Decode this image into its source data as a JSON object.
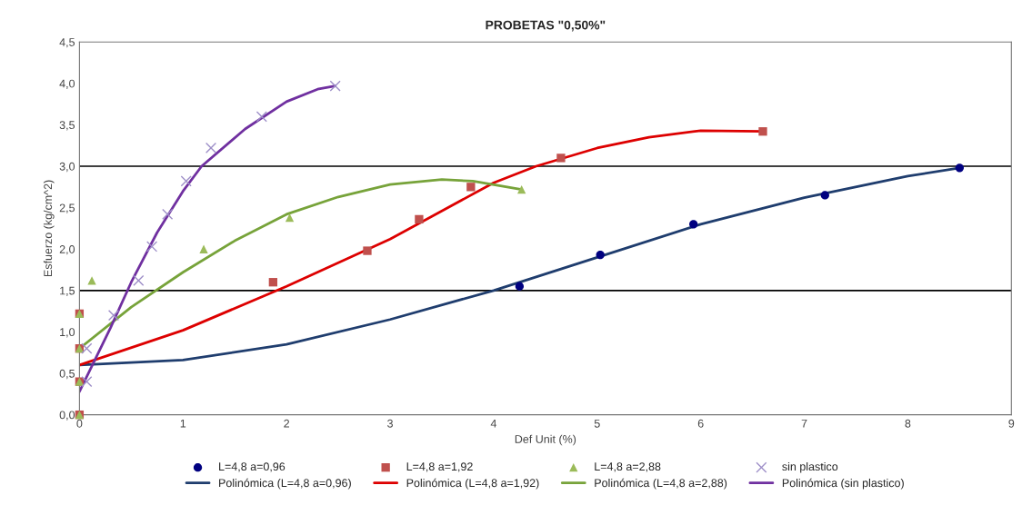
{
  "chart_data": {
    "type": "scatter",
    "title": "PROBETAS \"0,50%\"",
    "xlabel": "Def Unit (%)",
    "ylabel": "Esfuerzo (kg/cm^2)",
    "xlim": [
      0,
      9
    ],
    "xticks": [
      0,
      1,
      2,
      3,
      4,
      5,
      6,
      7,
      8,
      9
    ],
    "ylim": [
      0,
      4.5
    ],
    "yticks": [
      {
        "value": 0,
        "label": "0,0"
      },
      {
        "value": 0.5,
        "label": "0,5"
      },
      {
        "value": 1,
        "label": "1,0"
      },
      {
        "value": 1.5,
        "label": "1,5"
      },
      {
        "value": 2,
        "label": "2,0"
      },
      {
        "value": 2.5,
        "label": "2,5"
      },
      {
        "value": 3,
        "label": "3,0"
      },
      {
        "value": 3.5,
        "label": "3,5"
      },
      {
        "value": 4,
        "label": "4,0"
      },
      {
        "value": 4.5,
        "label": "4,5"
      }
    ],
    "grid": false,
    "legend": "bottom",
    "ref_lines": [
      {
        "axis": "y",
        "value": 1.5,
        "color": "#000000"
      },
      {
        "axis": "y",
        "value": 3.0,
        "color": "#000000"
      }
    ],
    "series": [
      {
        "name": "L=4,8 a=0,96",
        "marker": "circle",
        "color": "#000080",
        "x": [
          4.25,
          5.03,
          5.93,
          7.2,
          8.5
        ],
        "values": [
          1.55,
          1.93,
          2.3,
          2.65,
          2.98
        ]
      },
      {
        "name": "L=4,8 a=1,92",
        "marker": "square",
        "color": "#c0504d",
        "x": [
          0,
          0,
          0,
          0,
          1.87,
          2.78,
          3.28,
          3.78,
          4.65,
          6.6
        ],
        "values": [
          0,
          0.4,
          0.8,
          1.22,
          1.6,
          1.98,
          2.36,
          2.75,
          3.1,
          3.42
        ]
      },
      {
        "name": "L=4,8 a=2,88",
        "marker": "triangle",
        "color": "#9bbb59",
        "x": [
          0,
          0,
          0,
          0,
          0.12,
          1.2,
          2.03,
          4.27
        ],
        "values": [
          0,
          0.4,
          0.8,
          1.22,
          1.62,
          2.0,
          2.38,
          2.72
        ]
      },
      {
        "name": "sin plastico",
        "marker": "cross",
        "color": "#9e8fc8",
        "x": [
          0.07,
          0.07,
          0.33,
          0.57,
          0.7,
          0.85,
          1.03,
          1.27,
          1.76,
          2.47
        ],
        "values": [
          0.4,
          0.8,
          1.2,
          1.62,
          2.03,
          2.42,
          2.82,
          3.22,
          3.6,
          3.97
        ]
      },
      {
        "name": "Polinómica (L=4,8 a=0,96)",
        "type": "line",
        "marker": "none",
        "color": "#1f3d6e",
        "x": [
          0,
          1,
          2,
          3,
          4,
          5,
          6,
          7,
          8,
          8.5
        ],
        "values": [
          0.6,
          0.66,
          0.85,
          1.15,
          1.5,
          1.9,
          2.3,
          2.62,
          2.88,
          2.98
        ]
      },
      {
        "name": "Polinómica (L=4,8 a=1,92)",
        "type": "line",
        "marker": "none",
        "color": "#dd0000",
        "x": [
          0,
          1,
          2,
          3,
          4,
          4.41,
          5,
          5.5,
          6,
          6.6
        ],
        "values": [
          0.6,
          1.02,
          1.55,
          2.12,
          2.8,
          3.0,
          3.22,
          3.35,
          3.43,
          3.42
        ]
      },
      {
        "name": "Polinómica (L=4,8 a=2,88)",
        "type": "line",
        "marker": "none",
        "color": "#77a33a",
        "x": [
          0,
          0.5,
          1,
          1.5,
          2,
          2.5,
          3,
          3.5,
          3.8,
          4.27
        ],
        "values": [
          0.8,
          1.3,
          1.72,
          2.1,
          2.42,
          2.63,
          2.78,
          2.84,
          2.82,
          2.72
        ]
      },
      {
        "name": "Polinómica (sin plastico)",
        "type": "line",
        "marker": "none",
        "color": "#7030a0",
        "x": [
          0,
          0.3,
          0.5,
          0.75,
          1,
          1.18,
          1.6,
          2,
          2.3,
          2.47
        ],
        "values": [
          0.28,
          1.05,
          1.6,
          2.2,
          2.7,
          3.0,
          3.45,
          3.78,
          3.93,
          3.97
        ]
      }
    ]
  }
}
